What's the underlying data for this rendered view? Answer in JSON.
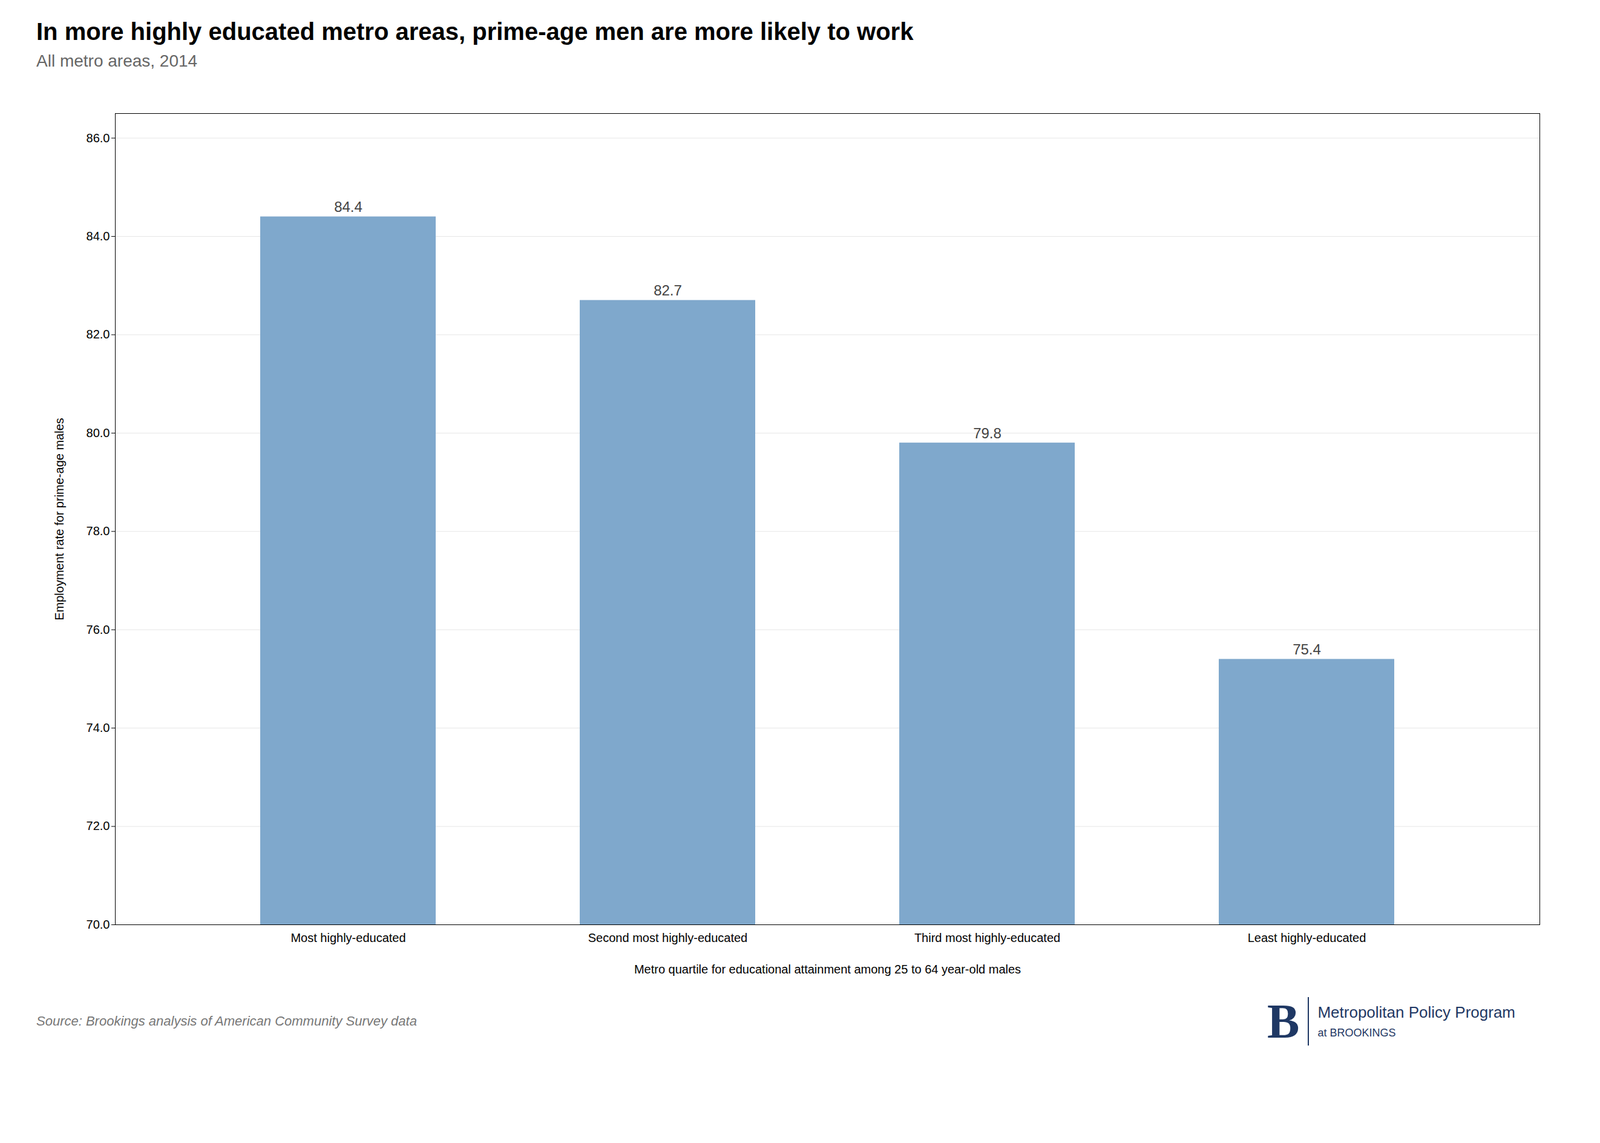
{
  "chart_data": {
    "type": "bar",
    "title": "In more highly educated metro areas, prime-age men are more likely to work",
    "subtitle": "All metro areas, 2014",
    "categories": [
      "Most highly-educated",
      "Second most highly-educated",
      "Third most highly-educated",
      "Least highly-educated"
    ],
    "values": [
      84.4,
      82.7,
      79.8,
      75.4
    ],
    "color": "#7fa8cc",
    "ylabel": "Employment rate for prime-age males",
    "xlabel": "Metro quartile for educational attainment among 25 to 64 year-old males",
    "ylim": [
      70.0,
      86.5
    ],
    "yticks": [
      {
        "value": 70.0,
        "label": "70.0"
      },
      {
        "value": 72.0,
        "label": "72.0"
      },
      {
        "value": 74.0,
        "label": "74.0"
      },
      {
        "value": 76.0,
        "label": "76.0"
      },
      {
        "value": 78.0,
        "label": "78.0"
      },
      {
        "value": 80.0,
        "label": "80.0"
      },
      {
        "value": 82.0,
        "label": "82.0"
      },
      {
        "value": 84.0,
        "label": "84.0"
      },
      {
        "value": 86.0,
        "label": "86.0"
      }
    ],
    "grid": true,
    "data_labels": true,
    "caption": "Source: Brookings analysis of American Community Survey data",
    "annotations": [
      {
        "text": "B",
        "color": "#1f3864"
      },
      {
        "text": "Metropolitan Policy Program",
        "color": "#1f3864"
      },
      {
        "text": "at BROOKINGS",
        "color": "#1f3864"
      }
    ]
  }
}
